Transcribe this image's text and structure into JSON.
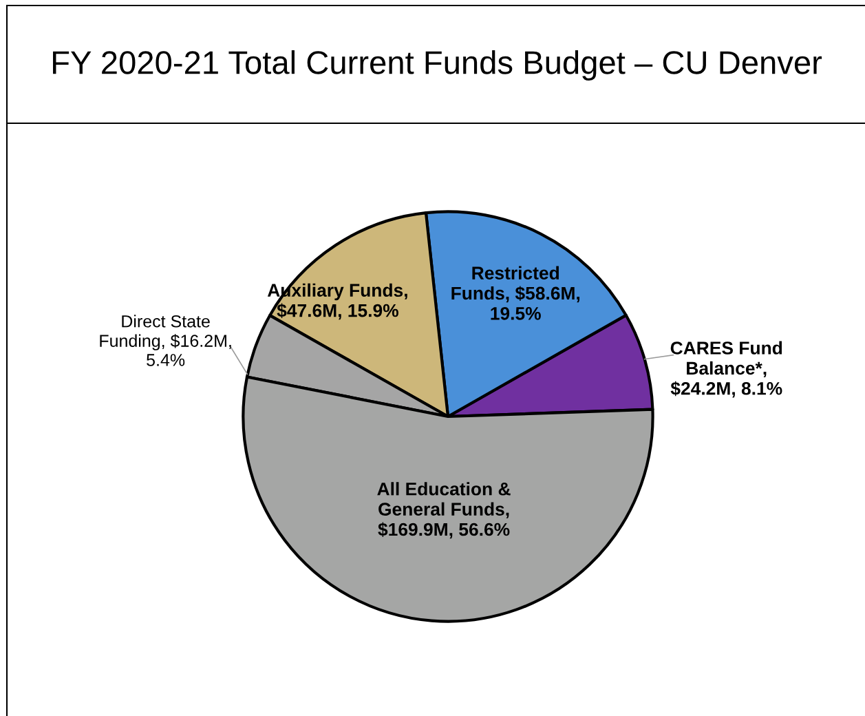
{
  "chart_data": {
    "type": "pie",
    "title": "FY 2020-21 Total Current Funds Budget – CU Denver",
    "categories": [
      "CARES Fund Balance*",
      "Restricted Funds",
      "Auxiliary Funds",
      "Direct State Funding",
      "All Education & General Funds"
    ],
    "values": [
      8.1,
      19.5,
      15.9,
      5.4,
      56.6
    ],
    "value_labels": [
      ", $24.2M, 8.1%",
      ", $58.6M, 19.5%",
      ", $47.6M, 15.9%",
      ", $16.2M, 5.4%",
      ", $169.9M, 56.6%"
    ],
    "colors": [
      "#7030a0",
      "#4a90d9",
      "#cdb77a",
      "#a5a5a5",
      "#a5a6a5"
    ]
  }
}
